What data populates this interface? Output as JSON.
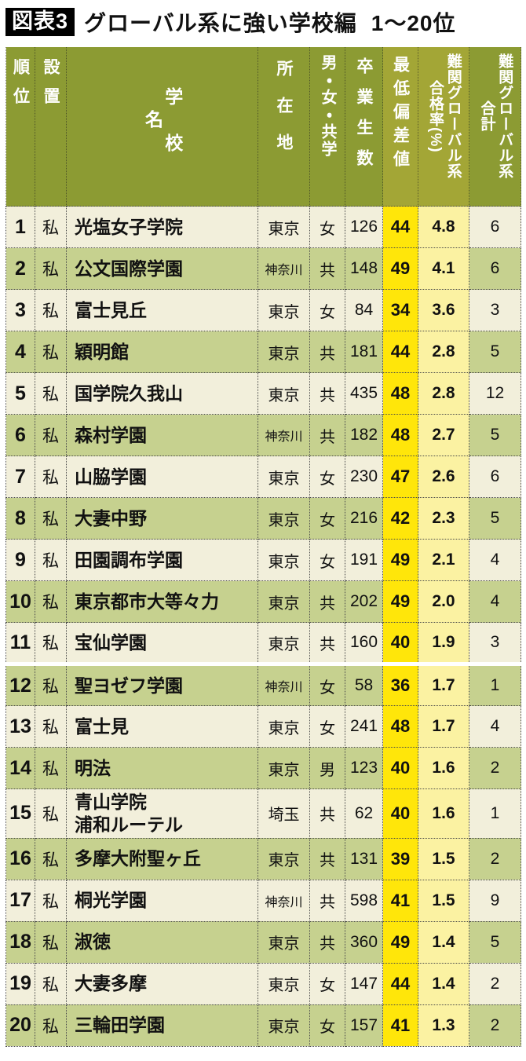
{
  "header": {
    "badge": "図表3",
    "title": "グローバル系に強い学校編",
    "range": "1～20位"
  },
  "chart_data": {
    "type": "table",
    "columns": [
      {
        "id": "rank",
        "label": "順位"
      },
      {
        "id": "type",
        "label": "設置"
      },
      {
        "id": "name",
        "label": "学校名"
      },
      {
        "id": "location",
        "label": "所在地"
      },
      {
        "id": "gender",
        "label": "男・女・共学"
      },
      {
        "id": "graduates",
        "label": "卒業生数"
      },
      {
        "id": "deviation",
        "label": "最低偏差値"
      },
      {
        "id": "pass_rate",
        "label": "難関グローバル系\n合格率(%)"
      },
      {
        "id": "total",
        "label": "難関グローバル系\n合計"
      }
    ],
    "rows": [
      [
        1,
        "私",
        "光塩女子学院",
        "東京",
        "女",
        "126",
        "44",
        "4.8",
        "6"
      ],
      [
        2,
        "私",
        "公文国際学園",
        "神奈川",
        "共",
        "148",
        "49",
        "4.1",
        "6"
      ],
      [
        3,
        "私",
        "富士見丘",
        "東京",
        "女",
        "84",
        "34",
        "3.6",
        "3"
      ],
      [
        4,
        "私",
        "穎明館",
        "東京",
        "共",
        "181",
        "44",
        "2.8",
        "5"
      ],
      [
        5,
        "私",
        "国学院久我山",
        "東京",
        "共",
        "435",
        "48",
        "2.8",
        "12"
      ],
      [
        6,
        "私",
        "森村学園",
        "神奈川",
        "共",
        "182",
        "48",
        "2.7",
        "5"
      ],
      [
        7,
        "私",
        "山脇学園",
        "東京",
        "女",
        "230",
        "47",
        "2.6",
        "6"
      ],
      [
        8,
        "私",
        "大妻中野",
        "東京",
        "女",
        "216",
        "42",
        "2.3",
        "5"
      ],
      [
        9,
        "私",
        "田園調布学園",
        "東京",
        "女",
        "191",
        "49",
        "2.1",
        "4"
      ],
      [
        10,
        "私",
        "東京都市大等々力",
        "東京",
        "共",
        "202",
        "49",
        "2.0",
        "4"
      ],
      [
        11,
        "私",
        "宝仙学園",
        "東京",
        "共",
        "160",
        "40",
        "1.9",
        "3"
      ],
      [
        12,
        "私",
        "聖ヨゼフ学園",
        "神奈川",
        "女",
        "58",
        "36",
        "1.7",
        "1"
      ],
      [
        13,
        "私",
        "富士見",
        "東京",
        "女",
        "241",
        "48",
        "1.7",
        "4"
      ],
      [
        14,
        "私",
        "明法",
        "東京",
        "男",
        "123",
        "40",
        "1.6",
        "2"
      ],
      [
        15,
        "私",
        "青山学院\n浦和ルーテル",
        "埼玉",
        "共",
        "62",
        "40",
        "1.6",
        "1"
      ],
      [
        16,
        "私",
        "多摩大附聖ヶ丘",
        "東京",
        "共",
        "131",
        "39",
        "1.5",
        "2"
      ],
      [
        17,
        "私",
        "桐光学園",
        "神奈川",
        "共",
        "598",
        "41",
        "1.5",
        "9"
      ],
      [
        18,
        "私",
        "淑徳",
        "東京",
        "共",
        "360",
        "49",
        "1.4",
        "5"
      ],
      [
        19,
        "私",
        "大妻多摩",
        "東京",
        "女",
        "147",
        "44",
        "1.4",
        "2"
      ],
      [
        20,
        "私",
        "三輪田学園",
        "東京",
        "女",
        "157",
        "41",
        "1.3",
        "2"
      ]
    ]
  },
  "colors": {
    "header_olive": "#8c9b33",
    "header_highlight": "#a3a636",
    "row_cream": "#f2efdb",
    "row_green": "#c6d18f",
    "deviation_yellow": "#ffe60a",
    "pass_rate_yellow": "#fbf2a2"
  }
}
